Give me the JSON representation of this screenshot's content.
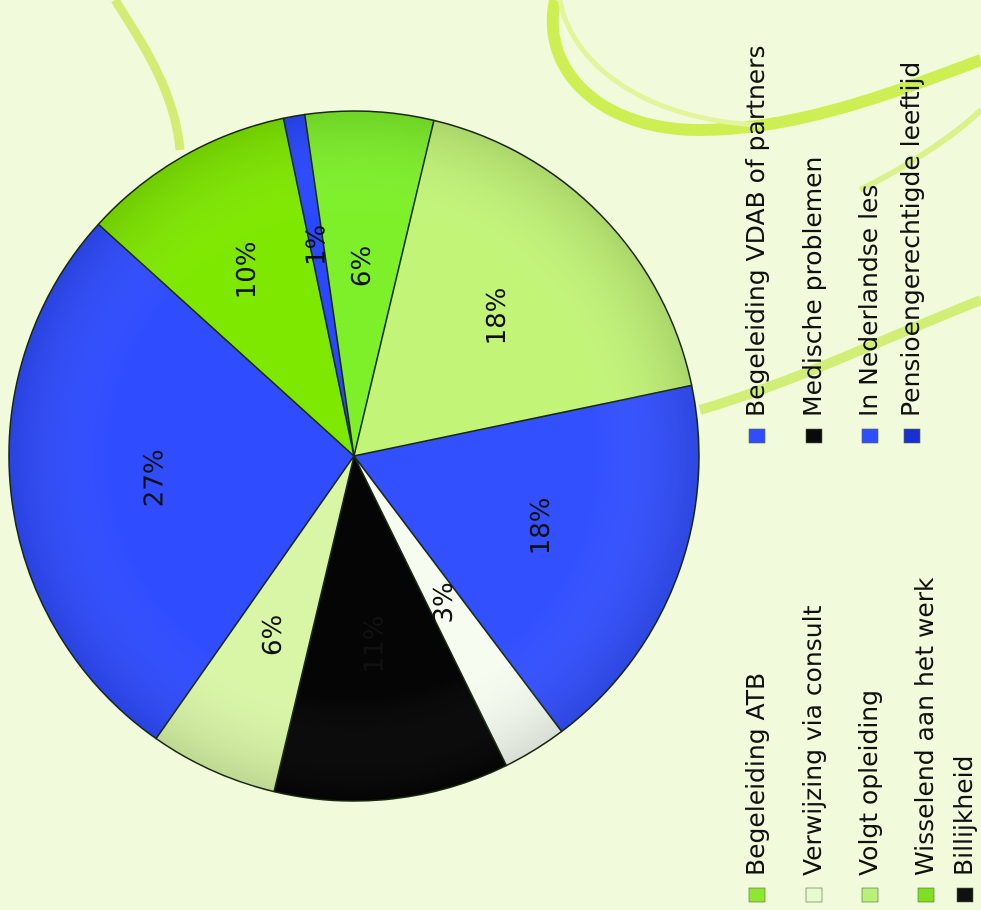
{
  "chart_data": {
    "type": "pie",
    "orientation": "rotated 90 degrees counter-clockwise",
    "slices": [
      {
        "label": "Begeleiding ATB",
        "value": 27,
        "label_text": "27%",
        "color": "#2f4cff"
      },
      {
        "label": "Verwijzing via consult",
        "value": 10,
        "label_text": "10%",
        "color": "#7fe800"
      },
      {
        "label": "Volgt opleiding",
        "value": 1,
        "label_text": "1%",
        "color": "#2a48ff"
      },
      {
        "label": "Wisselend aan het werk",
        "value": 6,
        "label_text": "6%",
        "color": "#7ef02a"
      },
      {
        "label": "Billijkheid",
        "value": 18,
        "label_text": "18%",
        "color": "#c2f478"
      },
      {
        "label": "Begeleiding VDAB of partners",
        "value": 18,
        "label_text": "18%",
        "color": "#3350ff"
      },
      {
        "label": "Medische problemen",
        "value": 3,
        "label_text": "3%",
        "color": "#f6fcf0"
      },
      {
        "label": "In Nederlandse les",
        "value": 11,
        "label_text": "11%",
        "color": "#050505"
      },
      {
        "label": "Pensioengerechtigde leeftijd",
        "value": 6,
        "label_text": "6%",
        "color": "#d9f6a6"
      }
    ],
    "legend": [
      {
        "label": "Begeleiding ATB",
        "color": "#8fe830"
      },
      {
        "label": "Verwijzing via consult",
        "color": "#e8fbd0"
      },
      {
        "label": "Volgt opleiding",
        "color": "#b8f07a"
      },
      {
        "label": "Wisselend aan het werk",
        "color": "#7ee020"
      },
      {
        "label": "Billijkheid",
        "color": "#111111"
      },
      {
        "label": "Begeleiding VDAB of partners",
        "color": "#2f4cff"
      },
      {
        "label": "Medische problemen",
        "color": "#0a0a0a"
      },
      {
        "label": "In Nederlandse les",
        "color": "#2f4cff"
      },
      {
        "label": "Pensioengerechtigde leeftijd",
        "color": "#1a2fd0"
      }
    ],
    "legend_placement": "right"
  }
}
